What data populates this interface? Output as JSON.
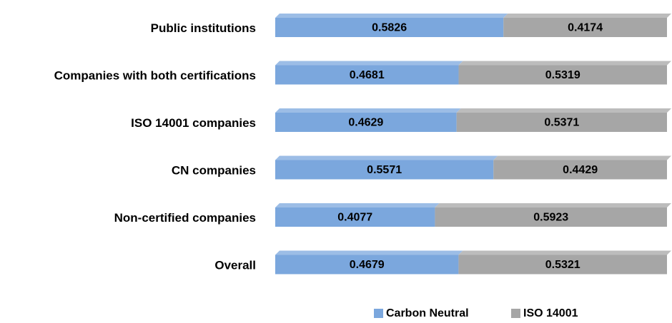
{
  "chart_data": {
    "type": "stacked-bar-horizontal",
    "categories": [
      "Public institutions",
      "Companies with both certifications",
      "ISO 14001 companies",
      "CN companies",
      "Non-certified companies",
      "Overall"
    ],
    "series": [
      {
        "name": "Carbon Neutral",
        "color": "#7ba7dd",
        "values": [
          0.5826,
          0.4681,
          0.4629,
          0.5571,
          0.4077,
          0.4679
        ]
      },
      {
        "name": "ISO 14001",
        "color": "#a6a6a6",
        "values": [
          0.4174,
          0.5319,
          0.5371,
          0.4429,
          0.5923,
          0.5321
        ]
      }
    ],
    "legend": "bottom"
  }
}
